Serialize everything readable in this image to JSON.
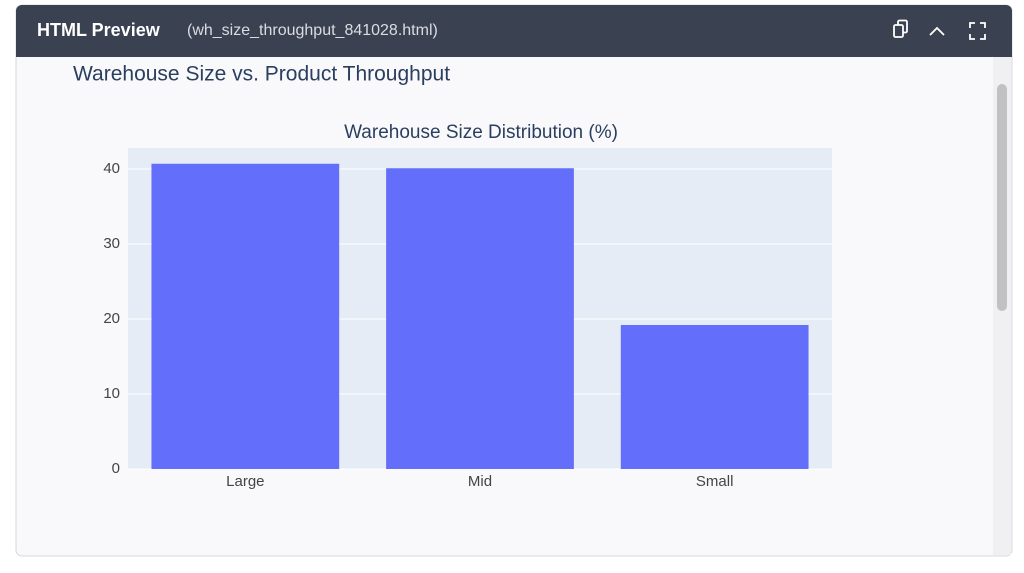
{
  "header": {
    "title": "HTML Preview",
    "filename": "(wh_size_throughput_841028.html)"
  },
  "page_title": "Warehouse Size vs. Product Throughput",
  "chart_data": {
    "type": "bar",
    "title": "Warehouse Size Distribution (%)",
    "categories": [
      "Large",
      "Mid",
      "Small"
    ],
    "values": [
      40.7,
      40.1,
      19.2
    ],
    "color": "#636efa",
    "ylim": [
      0,
      42.8
    ],
    "yticks": [
      0,
      10,
      20,
      30,
      40
    ],
    "grid": true
  }
}
